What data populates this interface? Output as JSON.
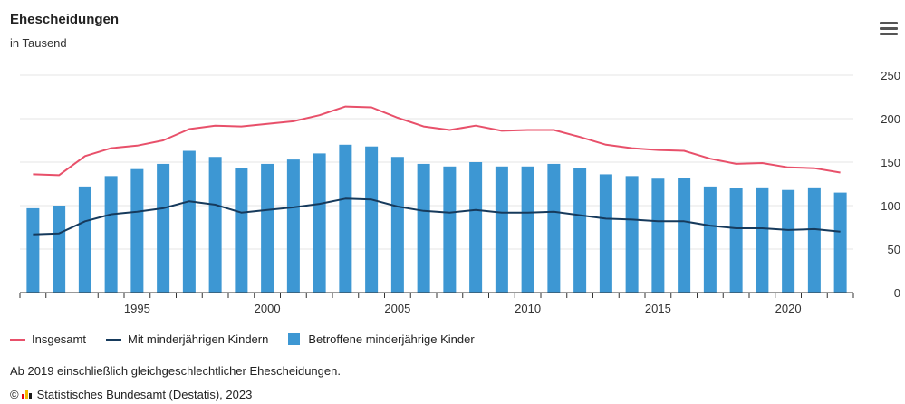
{
  "header": {
    "title": "Ehescheidungen",
    "subtitle": "in Tausend",
    "menu_icon": "hamburger-menu-icon"
  },
  "legend": {
    "items": [
      {
        "label": "Insgesamt",
        "color": "#e8506a",
        "kind": "line"
      },
      {
        "label": "Mit minderjährigen Kindern",
        "color": "#163a5c",
        "kind": "line"
      },
      {
        "label": "Betroffene minderjährige Kinder",
        "color": "#3d97d3",
        "kind": "bar"
      }
    ]
  },
  "footer": {
    "note": "Ab 2019 einschließlich gleichgeschlechtlicher Ehescheidungen.",
    "copyright": "©",
    "source": "Statistisches Bundesamt (Destatis), 2023",
    "logo_icon": "destatis-logo-icon"
  },
  "chart_data": {
    "type": "bar",
    "x": [
      1991,
      1992,
      1993,
      1994,
      1995,
      1996,
      1997,
      1998,
      1999,
      2000,
      2001,
      2002,
      2003,
      2004,
      2005,
      2006,
      2007,
      2008,
      2009,
      2010,
      2011,
      2012,
      2013,
      2014,
      2015,
      2016,
      2017,
      2018,
      2019,
      2020,
      2021,
      2022
    ],
    "x_tick_labels": [
      "1995",
      "2000",
      "2005",
      "2010",
      "2015",
      "2020"
    ],
    "y_tick_labels": [
      "0",
      "50",
      "100",
      "150",
      "200",
      "250"
    ],
    "ylim": [
      0,
      250
    ],
    "grid": true,
    "series": [
      {
        "name": "Betroffene minderjährige Kinder",
        "type": "bar",
        "color": "#3d97d3",
        "values": [
          97,
          100,
          122,
          134,
          142,
          148,
          163,
          156,
          143,
          148,
          153,
          160,
          170,
          168,
          156,
          148,
          145,
          150,
          145,
          145,
          148,
          143,
          136,
          134,
          131,
          132,
          122,
          120,
          121,
          118,
          121,
          115
        ]
      },
      {
        "name": "Insgesamt",
        "type": "line",
        "color": "#e8506a",
        "values": [
          136,
          135,
          157,
          166,
          169,
          175,
          188,
          192,
          191,
          194,
          197,
          204,
          214,
          213,
          201,
          191,
          187,
          192,
          186,
          187,
          187,
          179,
          170,
          166,
          164,
          163,
          154,
          148,
          149,
          144,
          143,
          138
        ]
      },
      {
        "name": "Mit minderjährigen Kindern",
        "type": "line",
        "color": "#163a5c",
        "values": [
          67,
          68,
          82,
          90,
          93,
          97,
          105,
          101,
          92,
          95,
          98,
          102,
          108,
          107,
          99,
          94,
          92,
          95,
          92,
          92,
          93,
          89,
          85,
          84,
          82,
          82,
          77,
          74,
          74,
          72,
          73,
          70
        ]
      }
    ]
  }
}
